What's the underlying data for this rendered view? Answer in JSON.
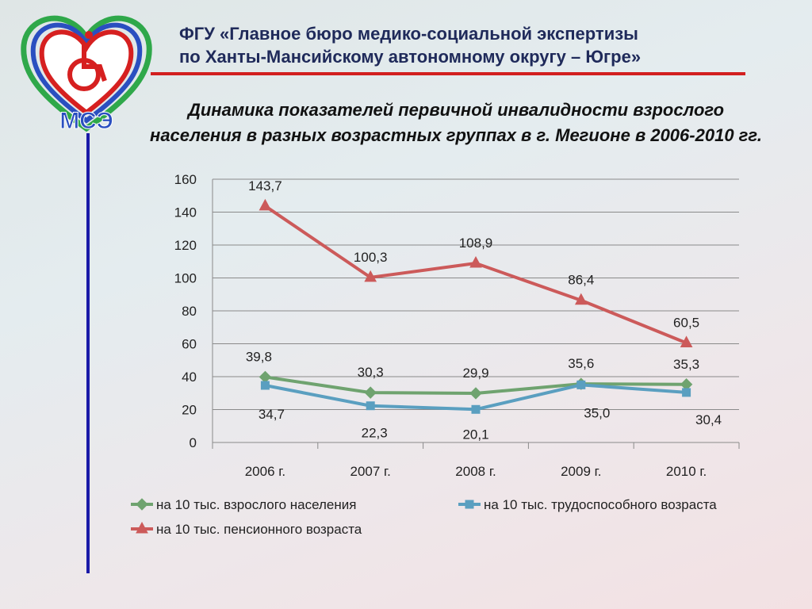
{
  "header": {
    "org_line1": "ФГУ «Главное бюро медико-социальной экспертизы",
    "org_line2": "по Ханты-Мансийскому автономному округу – Югре»",
    "logo_text": "МСЭ",
    "logo_icon": "wheelchair-heart-icon"
  },
  "slide": {
    "title_line1": "Динамика показателей первичной инвалидности взрослого",
    "title_line2": "населения в разных возрастных группах в г. Мегионе в 2006-2010 гг."
  },
  "colors": {
    "accent_line": "#d21f1f",
    "side_line": "#1a1aa8",
    "series_adult": "#6fa36f",
    "series_working": "#5a9fc0",
    "series_pension": "#cc5a5a"
  },
  "chart_data": {
    "type": "line",
    "categories": [
      "2006 г.",
      "2007 г.",
      "2008 г.",
      "2009 г.",
      "2010 г."
    ],
    "ylim": [
      0,
      160
    ],
    "yticks": [
      "0",
      "20",
      "40",
      "60",
      "80",
      "100",
      "120",
      "140",
      "160"
    ],
    "grid": true,
    "legend_position": "bottom",
    "series": [
      {
        "name": "на 10 тыс. взрослого населения",
        "marker": "diamond",
        "color": "#6fa36f",
        "values": [
          39.8,
          30.3,
          29.9,
          35.6,
          35.3
        ],
        "labels": [
          "39,8",
          "30,3",
          "29,9",
          "35,6",
          "35,3"
        ]
      },
      {
        "name": "на 10 тыс. трудоспособного возраста",
        "marker": "square",
        "color": "#5a9fc0",
        "values": [
          34.7,
          22.3,
          20.1,
          35.0,
          30.4
        ],
        "labels": [
          "34,7",
          "22,3",
          "20,1",
          "35,0",
          "30,4"
        ]
      },
      {
        "name": "на 10 тыс. пенсионного возраста",
        "marker": "triangle",
        "color": "#cc5a5a",
        "values": [
          143.7,
          100.3,
          108.9,
          86.4,
          60.5
        ],
        "labels": [
          "143,7",
          "100,3",
          "108,9",
          "86,4",
          "60,5"
        ]
      }
    ]
  }
}
